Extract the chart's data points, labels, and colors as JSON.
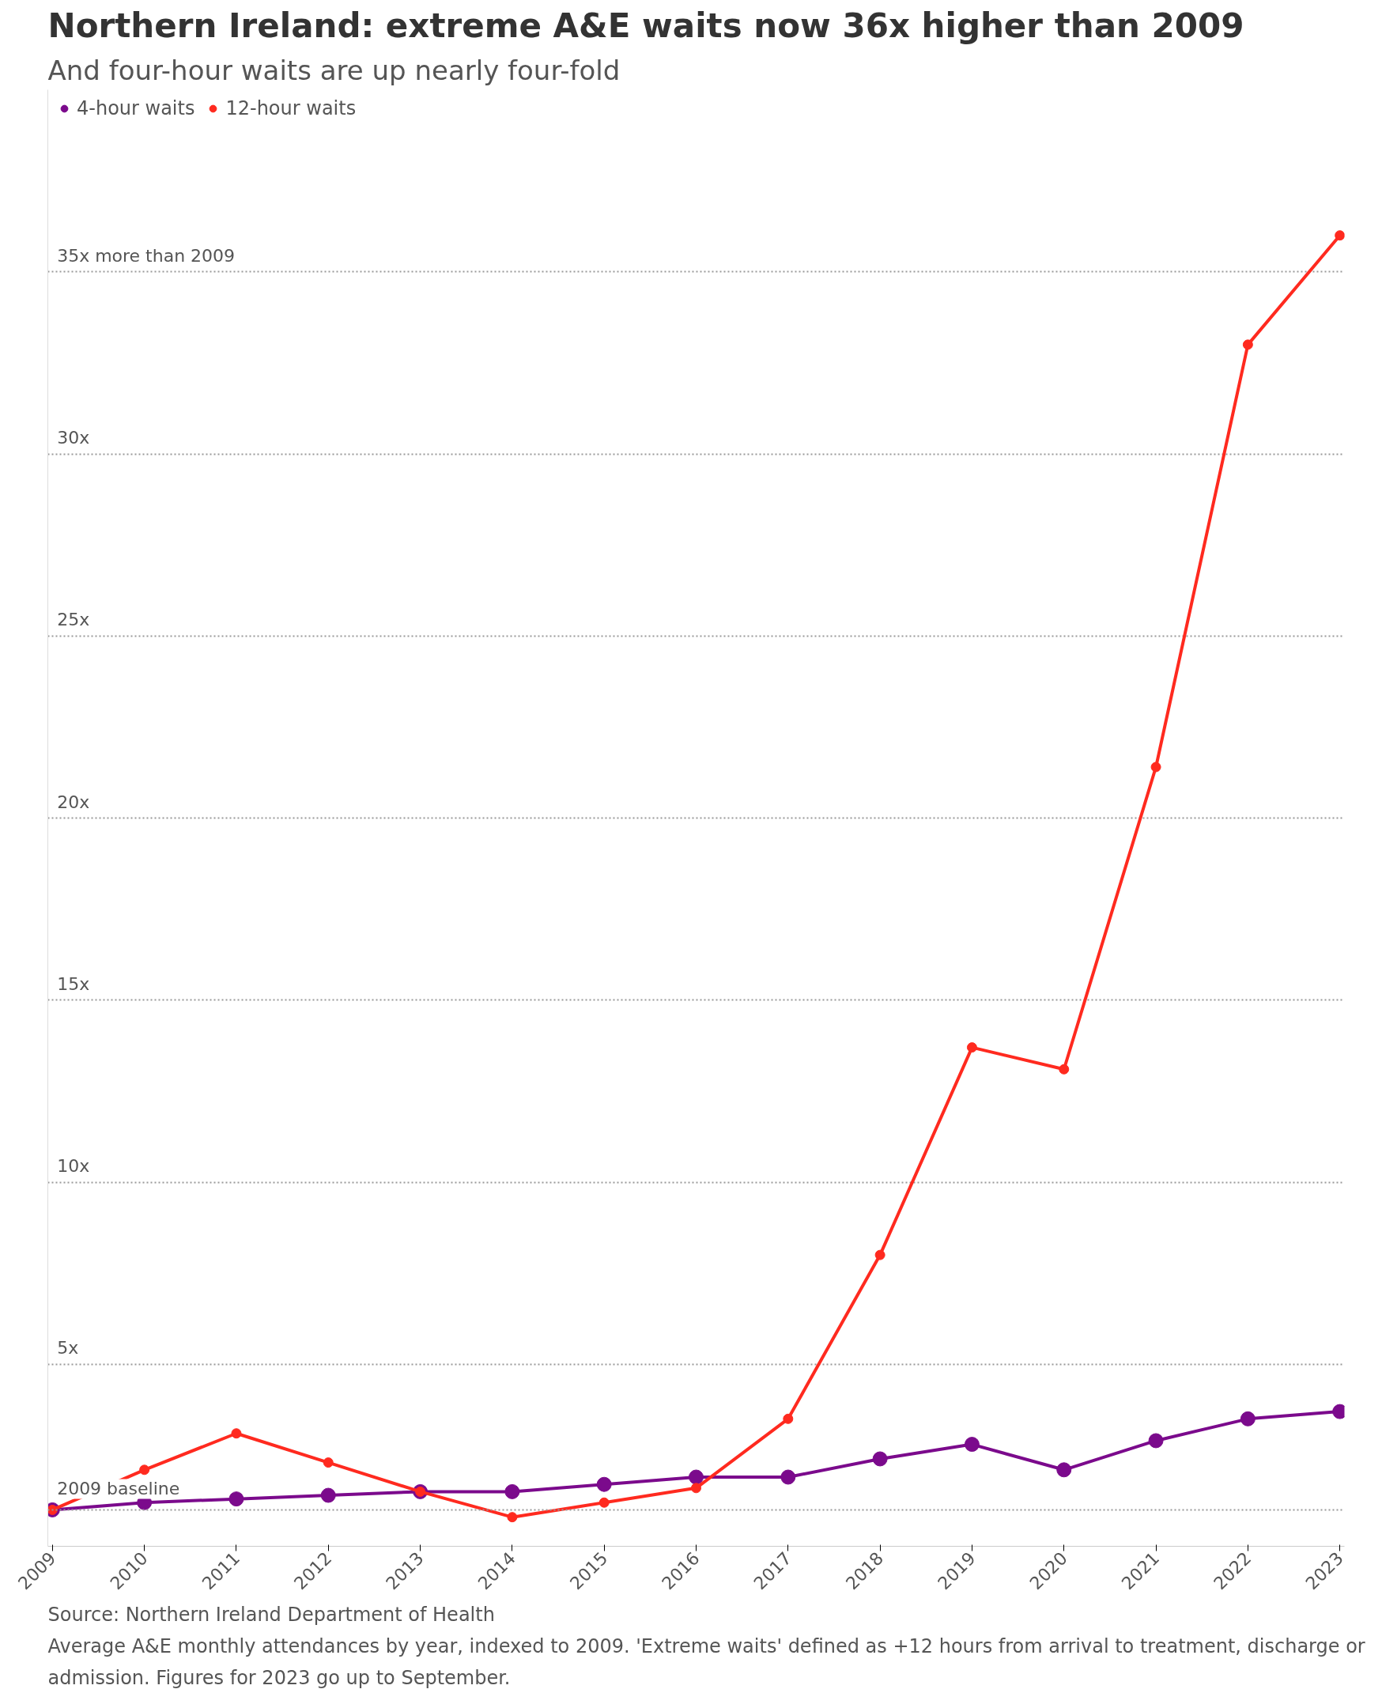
{
  "chart_data": {
    "type": "line",
    "title": "Northern Ireland: extreme A&E waits now 36x higher than 2009",
    "subtitle": "And four-hour waits are up nearly four-fold",
    "categories": [
      "2009",
      "2010",
      "2011",
      "2012",
      "2013",
      "2014",
      "2015",
      "2016",
      "2017",
      "2018",
      "2019",
      "2020",
      "2021",
      "2022",
      "2023"
    ],
    "series": [
      {
        "name": "4-hour waits",
        "color": "#7b0a8c",
        "values": [
          1,
          1.2,
          1.3,
          1.4,
          1.5,
          1.5,
          1.7,
          1.9,
          1.9,
          2.4,
          2.8,
          2.1,
          2.9,
          3.5,
          3.7
        ]
      },
      {
        "name": "12-hour waits",
        "color": "#ff2a1f",
        "values": [
          1,
          2.1,
          3.1,
          2.3,
          1.5,
          0.8,
          1.2,
          1.6,
          3.5,
          8,
          13.7,
          13.1,
          21.4,
          33,
          36
        ]
      }
    ],
    "ylim": [
      0,
      40
    ],
    "ref_lines": [
      {
        "axis": "y",
        "value": 1,
        "label": "2009 baseline",
        "line_style": "dotted"
      }
    ],
    "yticks": [
      {
        "value": 5,
        "label": "5x"
      },
      {
        "value": 10,
        "label": "10x"
      },
      {
        "value": 15,
        "label": "15x"
      },
      {
        "value": 20,
        "label": "20x"
      },
      {
        "value": 25,
        "label": "25x"
      },
      {
        "value": 30,
        "label": "30x"
      },
      {
        "value": 35,
        "label": "35x more than 2009"
      }
    ],
    "grid": "y",
    "legend": "top left",
    "marker": "circle",
    "line_style": "solid",
    "annotations": [
      "Source: Northern Ireland Department of Health",
      "Average A&E monthly attendances by year, indexed to 2009. 'Extreme waits' defined as +12 hours from arrival to treatment, discharge or admission. Figures for 2023 go up to September."
    ]
  }
}
